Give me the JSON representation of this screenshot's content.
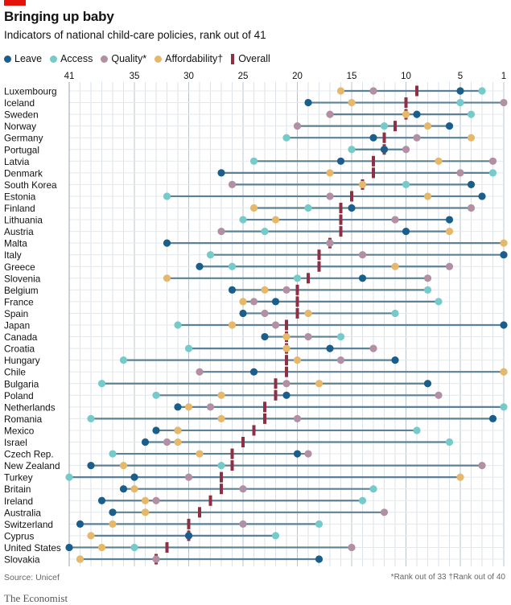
{
  "header": {
    "title": "Bringing up baby",
    "subtitle": "Indicators of national child-care policies, rank out of 41"
  },
  "legend": [
    {
      "label": "Leave",
      "color": "#1a5e8c",
      "shape": "dot"
    },
    {
      "label": "Access",
      "color": "#74cbc9",
      "shape": "dot"
    },
    {
      "label": "Quality*",
      "color": "#b38fa4",
      "shape": "dot"
    },
    {
      "label": "Affordability†",
      "color": "#e6b86a",
      "shape": "dot"
    },
    {
      "label": "Overall",
      "color": "#8f2f44",
      "shape": "bar"
    }
  ],
  "footer": {
    "source": "Source: Unicef",
    "footnote": "*Rank out of 33   †Rank out of 40",
    "brand": "The Economist"
  },
  "chart_data": {
    "type": "scatter",
    "title": "Bringing up baby",
    "subtitle": "Indicators of national child-care policies, rank out of 41",
    "x_axis": {
      "reversed": true,
      "range": [
        41,
        1
      ],
      "ticks": [
        "41",
        "35",
        "30",
        "25",
        "20",
        "15",
        "10",
        "5",
        "1"
      ],
      "tick_values": [
        41,
        35,
        30,
        25,
        20,
        15,
        10,
        5,
        1
      ]
    },
    "grid": true,
    "legend_position": "top",
    "series_names": [
      "Leave",
      "Access",
      "Quality*",
      "Affordability†",
      "Overall"
    ],
    "rows": [
      {
        "country": "Luxembourg",
        "leave": 5,
        "access": 3,
        "quality": 13,
        "affordability": 16,
        "overall": 9
      },
      {
        "country": "Iceland",
        "leave": 19,
        "access": 5,
        "quality": 1,
        "affordability": 15,
        "overall": 10
      },
      {
        "country": "Sweden",
        "leave": 9,
        "access": 4,
        "quality": 17,
        "affordability": 10,
        "overall": 10
      },
      {
        "country": "Norway",
        "leave": 6,
        "access": 12,
        "quality": 20,
        "affordability": 8,
        "overall": 11
      },
      {
        "country": "Germany",
        "leave": 13,
        "access": 21,
        "quality": 9,
        "affordability": 4,
        "overall": 12
      },
      {
        "country": "Portugal",
        "leave": 12,
        "access": 15,
        "quality": 10,
        "affordability": 12,
        "overall": 12
      },
      {
        "country": "Latvia",
        "leave": 16,
        "access": 24,
        "quality": 2,
        "affordability": 7,
        "overall": 13
      },
      {
        "country": "Denmark",
        "leave": 27,
        "access": 2,
        "quality": 5,
        "affordability": 17,
        "overall": 13
      },
      {
        "country": "South Korea",
        "leave": 4,
        "access": 10,
        "quality": 26,
        "affordability": 14,
        "overall": 14
      },
      {
        "country": "Estonia",
        "leave": 3,
        "access": 32,
        "quality": 17,
        "affordability": 8,
        "overall": 15
      },
      {
        "country": "Finland",
        "leave": 15,
        "access": 19,
        "quality": 4,
        "affordability": 24,
        "overall": 16
      },
      {
        "country": "Lithuania",
        "leave": 6,
        "access": 25,
        "quality": 11,
        "affordability": 22,
        "overall": 16
      },
      {
        "country": "Austria",
        "leave": 10,
        "access": 23,
        "quality": 27,
        "affordability": 6,
        "overall": 16
      },
      {
        "country": "Malta",
        "leave": 32,
        "access": 17,
        "quality": 17,
        "affordability": 1,
        "overall": 17
      },
      {
        "country": "Italy",
        "leave": 1,
        "access": 28,
        "quality": 14,
        "affordability": 1,
        "overall": 18
      },
      {
        "country": "Greece",
        "leave": 29,
        "access": 26,
        "quality": 6,
        "affordability": 11,
        "overall": 18
      },
      {
        "country": "Slovenia",
        "leave": 14,
        "access": 20,
        "quality": 8,
        "affordability": 32,
        "overall": 19
      },
      {
        "country": "Belgium",
        "leave": 26,
        "access": 8,
        "quality": 21,
        "affordability": 23,
        "overall": 20
      },
      {
        "country": "France",
        "leave": 22,
        "access": 7,
        "quality": 24,
        "affordability": 25,
        "overall": 20
      },
      {
        "country": "Spain",
        "leave": 25,
        "access": 11,
        "quality": 23,
        "affordability": 19,
        "overall": 20
      },
      {
        "country": "Japan",
        "leave": 1,
        "access": 31,
        "quality": 22,
        "affordability": 26,
        "overall": 21
      },
      {
        "country": "Canada",
        "leave": 23,
        "access": 16,
        "quality": 19,
        "affordability": 21,
        "overall": 21
      },
      {
        "country": "Croatia",
        "leave": 17,
        "access": 30,
        "quality": 13,
        "affordability": 21,
        "overall": 21
      },
      {
        "country": "Hungary",
        "leave": 11,
        "access": 36,
        "quality": 16,
        "affordability": 20,
        "overall": 21
      },
      {
        "country": "Chile",
        "leave": 24,
        "access": 1,
        "quality": 29,
        "affordability": 1,
        "overall": 21
      },
      {
        "country": "Bulgaria",
        "leave": 8,
        "access": 38,
        "quality": 21,
        "affordability": 18,
        "overall": 22
      },
      {
        "country": "Poland",
        "leave": 21,
        "access": 33,
        "quality": 7,
        "affordability": 27,
        "overall": 22
      },
      {
        "country": "Netherlands",
        "leave": 31,
        "access": 1,
        "quality": 28,
        "affordability": 30,
        "overall": 23
      },
      {
        "country": "Romania",
        "leave": 2,
        "access": 39,
        "quality": 20,
        "affordability": 27,
        "overall": 23
      },
      {
        "country": "Mexico",
        "leave": 33,
        "access": 9,
        "quality": 31,
        "affordability": 31,
        "overall": 24
      },
      {
        "country": "Israel",
        "leave": 34,
        "access": 6,
        "quality": 32,
        "affordability": 31,
        "overall": 25
      },
      {
        "country": "Czech Rep.",
        "leave": 20,
        "access": 37,
        "quality": 19,
        "affordability": 29,
        "overall": 26
      },
      {
        "country": "New Zealand",
        "leave": 39,
        "access": 27,
        "quality": 3,
        "affordability": 36,
        "overall": 26
      },
      {
        "country": "Turkey",
        "leave": 35,
        "access": 41,
        "quality": 30,
        "affordability": 5,
        "overall": 27
      },
      {
        "country": "Britain",
        "leave": 36,
        "access": 13,
        "quality": 25,
        "affordability": 35,
        "overall": 27
      },
      {
        "country": "Ireland",
        "leave": 38,
        "access": 14,
        "quality": 33,
        "affordability": 34,
        "overall": 28
      },
      {
        "country": "Australia",
        "leave": 37,
        "access": 34,
        "quality": 12,
        "affordability": 34,
        "overall": 29
      },
      {
        "country": "Switzerland",
        "leave": 40,
        "access": 18,
        "quality": 25,
        "affordability": 37,
        "overall": 30
      },
      {
        "country": "Cyprus",
        "leave": 30,
        "access": 22,
        "quality": 30,
        "affordability": 39,
        "overall": 30
      },
      {
        "country": "United States",
        "leave": 41,
        "access": 35,
        "quality": 15,
        "affordability": 38,
        "overall": 32
      },
      {
        "country": "Slovakia",
        "leave": 18,
        "access": 40,
        "quality": 33,
        "affordability": 40,
        "overall": 33
      }
    ]
  }
}
